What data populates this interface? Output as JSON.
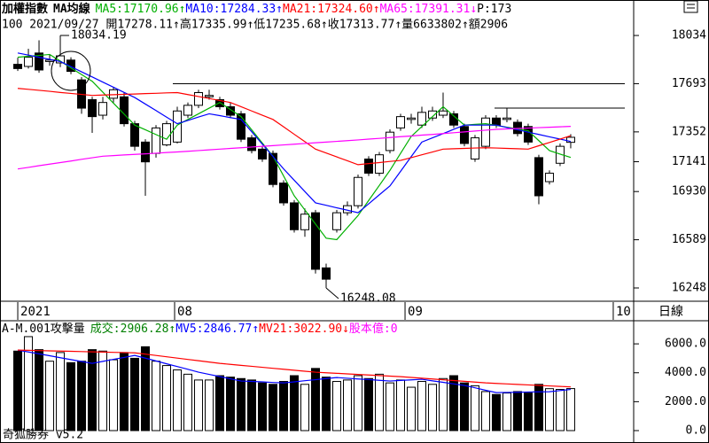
{
  "chart_data": [
    {
      "type": "candlestick",
      "title": "加權指數",
      "subtitle": "MA均線",
      "extra": "P:173",
      "info": "100 2021/09/27 開17278.11↑高17335.99↑低17235.68↑收17313.77↑量6633802↑額2906",
      "period": "日線",
      "xlim": [
        -1.67,
        57.92
      ],
      "xticks": [
        {
          "value": 0,
          "label": "2021"
        },
        {
          "value": 14.75,
          "label": "08"
        },
        {
          "value": 36.42,
          "label": "09"
        },
        {
          "value": 56,
          "label": "10"
        }
      ],
      "ylim": [
        16154,
        18285
      ],
      "yticks": [
        18034,
        17693,
        17352,
        17141,
        16930,
        16589,
        16248
      ],
      "reference_lines": [
        17693,
        17520
      ],
      "open": [
        17830,
        17815,
        17910,
        17850,
        17840,
        17860,
        17720,
        17580,
        17470,
        17590,
        17600,
        17410,
        17280,
        17200,
        17260,
        17280,
        17470,
        17540,
        17600,
        17580,
        17530,
        17480,
        17310,
        17230,
        17200,
        16990,
        16850,
        16660,
        16780,
        16390,
        16660,
        16780,
        16830,
        17160,
        17060,
        17220,
        17380,
        17440,
        17400,
        17450,
        17470,
        17480,
        17390,
        17160,
        17250,
        17450,
        17440,
        17420,
        17390,
        17170,
        17000,
        17130,
        17278.11
      ],
      "high": [
        17877,
        17940,
        18000,
        17900,
        18034.19,
        17880,
        17740,
        17600,
        17600,
        17670,
        17630,
        17430,
        17300,
        17400,
        17430,
        17530,
        17560,
        17650,
        17650,
        17600,
        17560,
        17500,
        17330,
        17250,
        17220,
        17010,
        16870,
        16810,
        16800,
        16420,
        16800,
        16860,
        17050,
        17180,
        17210,
        17370,
        17480,
        17480,
        17530,
        17530,
        17630,
        17500,
        17410,
        17330,
        17470,
        17470,
        17520,
        17440,
        17410,
        17190,
        17080,
        17270,
        17335.99
      ],
      "low": [
        17783,
        17800,
        17770,
        17820,
        17810,
        17760,
        17480,
        17345,
        17440,
        17560,
        17390,
        17220,
        16900,
        17170,
        17250,
        17270,
        17450,
        17520,
        17580,
        17510,
        17450,
        17280,
        17200,
        17140,
        16960,
        16830,
        16640,
        16610,
        16350,
        16248.08,
        16640,
        16760,
        16810,
        17040,
        17040,
        17200,
        17360,
        17410,
        17380,
        17430,
        17450,
        17380,
        17250,
        17140,
        17230,
        17380,
        17420,
        17320,
        17260,
        16840,
        16980,
        17110,
        17235.68
      ],
      "close": [
        17800,
        17880,
        17790,
        17860,
        17890,
        17780,
        17520,
        17460,
        17560,
        17650,
        17410,
        17250,
        17140,
        17380,
        17410,
        17500,
        17540,
        17630,
        17610,
        17530,
        17470,
        17300,
        17220,
        17160,
        16980,
        16850,
        16660,
        16770,
        16380,
        16310,
        16780,
        16830,
        17030,
        17060,
        17190,
        17350,
        17460,
        17450,
        17490,
        17500,
        17500,
        17400,
        17270,
        17310,
        17450,
        17400,
        17450,
        17340,
        17280,
        16900,
        17060,
        17250,
        17313.77
      ],
      "series": [
        {
          "name": "MA5:17170.96↑",
          "color": "#00b000",
          "values": [
            17880,
            17887,
            17893,
            17900,
            17853,
            17805,
            17758,
            17710,
            17633,
            17555,
            17478,
            17400,
            17367,
            17333,
            17300,
            17400,
            17440,
            17480,
            17520,
            17560,
            17510,
            17460,
            17367,
            17273,
            17180,
            17040,
            16900,
            16800,
            16700,
            16600,
            16590,
            16675,
            16760,
            16867,
            16973,
            17080,
            17200,
            17320,
            17390,
            17460,
            17530,
            17465,
            17400,
            17405,
            17410,
            17398,
            17385,
            17373,
            17360,
            17290,
            17220,
            17195,
            17170.96
          ]
        },
        {
          "name": "MA10:17284.33↑",
          "color": "#0000ff",
          "values": [
            17910,
            17895,
            17880,
            17865,
            17850,
            17814,
            17777,
            17741,
            17704,
            17668,
            17631,
            17595,
            17549,
            17503,
            17456,
            17410,
            17433,
            17457,
            17480,
            17467,
            17453,
            17440,
            17353,
            17265,
            17178,
            17090,
            17010,
            16930,
            16850,
            16833,
            16815,
            16798,
            16780,
            16843,
            16907,
            16970,
            17073,
            17177,
            17280,
            17310,
            17340,
            17370,
            17400,
            17400,
            17400,
            17400,
            17383,
            17367,
            17350,
            17334,
            17317,
            17301,
            17284.33
          ]
        },
        {
          "name": "MA21:17324.60↑",
          "color": "#ff0000",
          "values": [
            17660,
            17653,
            17646,
            17639,
            17631,
            17624,
            17617,
            17610,
            17613,
            17615,
            17618,
            17620,
            17623,
            17625,
            17628,
            17630,
            17616,
            17602,
            17588,
            17574,
            17560,
            17530,
            17500,
            17470,
            17440,
            17388,
            17335,
            17283,
            17230,
            17203,
            17175,
            17148,
            17120,
            17128,
            17135,
            17143,
            17150,
            17170,
            17190,
            17210,
            17230,
            17233,
            17235,
            17238,
            17240,
            17238,
            17235,
            17233,
            17230,
            17254,
            17277,
            17301,
            17324.6
          ]
        },
        {
          "name": "MA65:17391.31↓",
          "color": "#ff00ff",
          "values": [
            17090,
            17101,
            17113,
            17124,
            17135,
            17146,
            17158,
            17169,
            17180,
            17184,
            17189,
            17193,
            17197,
            17201,
            17206,
            17210,
            17215,
            17220,
            17225,
            17230,
            17235,
            17240,
            17245,
            17250,
            17255,
            17260,
            17265,
            17270,
            17275,
            17280,
            17285,
            17290,
            17295,
            17301,
            17306,
            17312,
            17318,
            17323,
            17329,
            17334,
            17340,
            17346,
            17352,
            17358,
            17364,
            17370,
            17373,
            17376,
            17379,
            17382,
            17385,
            17388,
            17391.31
          ]
        }
      ]
    },
    {
      "type": "bar",
      "title": "A-M.001攻擊量",
      "annotation": "股本億:0",
      "annotation_color": "#ff00ff",
      "ylim": [
        0,
        7600
      ],
      "yticks": [
        {
          "value": 6000,
          "label": "6000.0"
        },
        {
          "value": 4000,
          "label": "4000.0"
        },
        {
          "value": 2000,
          "label": "2000.0"
        },
        {
          "value": 0,
          "label": "0.0"
        }
      ],
      "series": [
        {
          "name": "成交:2906.28↑",
          "color": "#008000",
          "style": "bar",
          "values": [
            5500,
            6500,
            5600,
            4800,
            5400,
            4700,
            4800,
            5600,
            5500,
            4900,
            5400,
            5000,
            5800,
            4800,
            4500,
            4200,
            3900,
            3500,
            3500,
            3800,
            3700,
            3600,
            3500,
            3300,
            3200,
            3400,
            3800,
            3200,
            4300,
            3700,
            3400,
            3500,
            3800,
            3600,
            3900,
            3300,
            3500,
            3000,
            3400,
            3200,
            3600,
            3800,
            3300,
            3100,
            2700,
            2500,
            2600,
            2700,
            2600,
            3200,
            2900,
            2850,
            2906.28
          ]
        },
        {
          "name": "MV5:2846.77↑",
          "color": "#0000ff",
          "style": "line",
          "values": [
            5570,
            5440,
            5310,
            5180,
            5040,
            4910,
            4780,
            4650,
            4790,
            4930,
            5060,
            5200,
            5010,
            4820,
            4620,
            4430,
            4240,
            4040,
            3890,
            3740,
            3580,
            3430,
            3400,
            3370,
            3330,
            3300,
            3370,
            3450,
            3520,
            3600,
            3670,
            3620,
            3570,
            3530,
            3480,
            3430,
            3470,
            3510,
            3550,
            3440,
            3340,
            3230,
            3120,
            2960,
            2790,
            2630,
            2640,
            2650,
            2670,
            2680,
            2690,
            2770,
            2846.77
          ]
        },
        {
          "name": "MV21:3022.90↓",
          "color": "#ff0000",
          "style": "line",
          "values": [
            5570,
            5553,
            5535,
            5518,
            5501,
            5484,
            5466,
            5449,
            5432,
            5414,
            5397,
            5380,
            5289,
            5198,
            5106,
            5015,
            4924,
            4833,
            4741,
            4650,
            4582,
            4514,
            4447,
            4379,
            4311,
            4243,
            4176,
            4108,
            4040,
            4001,
            3963,
            3924,
            3885,
            3846,
            3808,
            3769,
            3730,
            3676,
            3623,
            3569,
            3515,
            3461,
            3408,
            3354,
            3300,
            3265,
            3230,
            3196,
            3161,
            3127,
            3092,
            3057,
            3022.9
          ]
        }
      ]
    }
  ],
  "footer": "奇狐勝券 v5.2"
}
